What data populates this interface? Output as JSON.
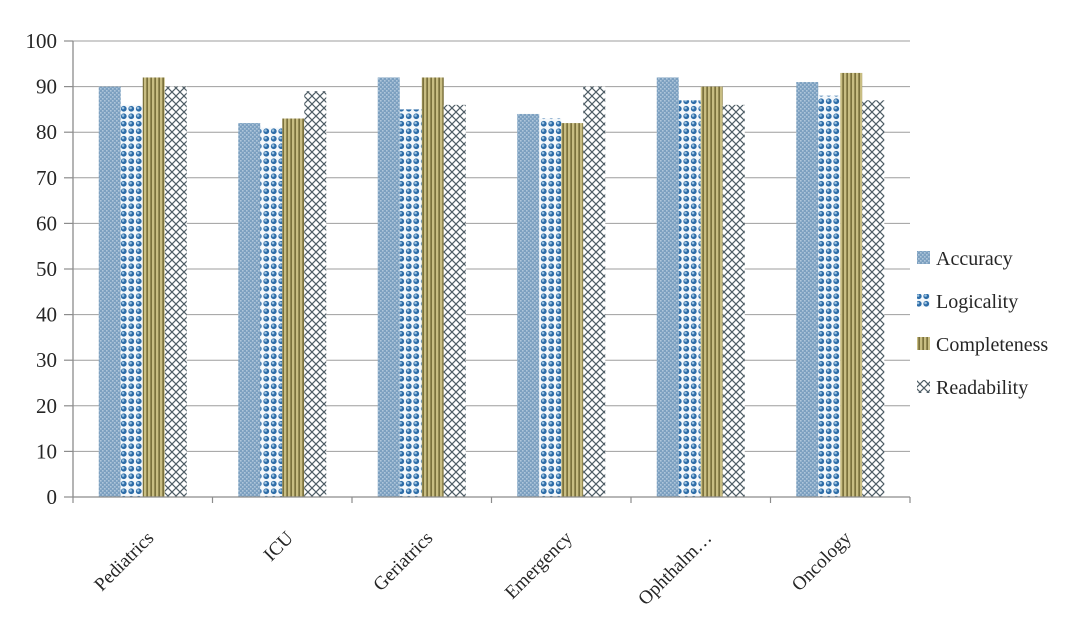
{
  "chart_data": {
    "type": "bar",
    "title": "",
    "xlabel": "",
    "ylabel": "",
    "categories": [
      "Pediatrics",
      "ICU",
      "Geriatrics",
      "Emergency",
      "Ophthalm…",
      "Oncology"
    ],
    "series": [
      {
        "name": "Accuracy",
        "values": [
          90,
          82,
          92,
          84,
          92,
          91
        ],
        "pattern": "dotted-weave",
        "color": "#7CA0C0",
        "color2": "#AEC6DA"
      },
      {
        "name": "Logicality",
        "values": [
          86,
          81,
          85,
          83,
          87,
          88
        ],
        "pattern": "spheres",
        "color": "#2E6DA8",
        "color2": "#F4F8FB"
      },
      {
        "name": "Completeness",
        "values": [
          92,
          83,
          92,
          82,
          90,
          93
        ],
        "pattern": "vertical-stripes",
        "color": "#7B713C",
        "color2": "#C8BD82"
      },
      {
        "name": "Readability",
        "values": [
          90,
          89,
          86,
          90,
          86,
          87
        ],
        "pattern": "diagonal-lattice",
        "color": "#4E5D66",
        "color2": "#FFFFFF"
      }
    ],
    "ylim": [
      0,
      100
    ],
    "ytick_step": 10,
    "ytick_labels": [
      "0",
      "10",
      "20",
      "30",
      "40",
      "50",
      "60",
      "70",
      "80",
      "90",
      "100"
    ],
    "grid": true,
    "legend_position": "right"
  },
  "styles": {
    "background": "#FFFFFF",
    "grid_color": "#9E9E9E",
    "axis_color": "#8C8C8C",
    "text_color": "#262626"
  }
}
